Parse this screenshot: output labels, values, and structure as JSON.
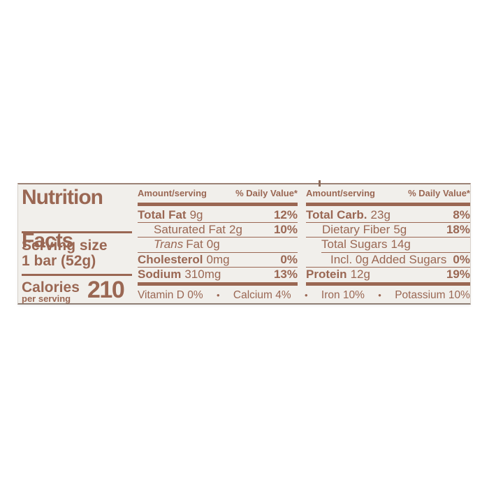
{
  "nutrition_label": {
    "title": {
      "line1": "Nutrition",
      "line2": "Facts"
    },
    "serving": {
      "label": "Serving size",
      "value": "1 bar (52g)"
    },
    "calories": {
      "label": "Calories",
      "sublabel": "per serving",
      "value": "210"
    },
    "col1": {
      "header_amount": "Amount/serving",
      "header_dv": "% Daily Value*",
      "rows": [
        {
          "name": "Total Fat",
          "value": "9g",
          "dv": "12%"
        },
        {
          "name": "Saturated Fat",
          "value": "2g",
          "dv": "10%"
        },
        {
          "name_italic": "Trans",
          "name": "Fat",
          "value": "0g",
          "dv": ""
        },
        {
          "name": "Cholesterol",
          "value": "0mg",
          "dv": "0%"
        },
        {
          "name": "Sodium",
          "value": "310mg",
          "dv": "13%"
        }
      ]
    },
    "col2": {
      "header_amount": "Amount/serving",
      "header_dv": "% Daily Value*",
      "rows": [
        {
          "name": "Total Carb.",
          "value": "23g",
          "dv": "8%"
        },
        {
          "name": "Dietary Fiber",
          "value": "5g",
          "dv": "18%"
        },
        {
          "name": "Total Sugars",
          "value": "14g",
          "dv": ""
        },
        {
          "name": "Incl. 0g Added Sugars",
          "value": "",
          "dv": "0%"
        },
        {
          "name": "Protein",
          "value": "12g",
          "dv": "19%"
        }
      ]
    },
    "micronutrients": {
      "separator": "•",
      "items": [
        "Vitamin D 0%",
        "Calcium 4%",
        "Iron 10%",
        "Potassium 10%"
      ]
    },
    "colors": {
      "text_brown": "#9a6753",
      "label_bg": "#f1efeb"
    }
  }
}
